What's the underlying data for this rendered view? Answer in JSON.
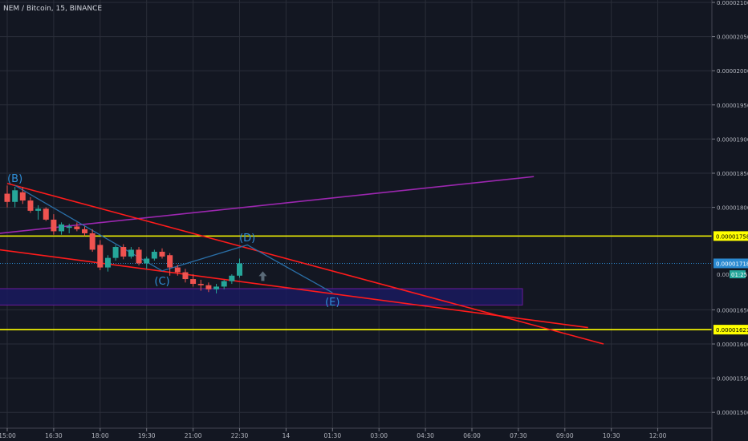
{
  "header": {
    "title": "NEM / Bitcoin, 15, BINANCE"
  },
  "colors": {
    "background": "#131722",
    "grid": "#2a2e39",
    "up": "#26a69a",
    "down": "#ef5350",
    "trend_red": "#ff1b1b",
    "trend_purple": "#9c27b0",
    "level_yellow": "#ffff00",
    "box_fill": "#1a1a5e",
    "box_stroke": "#6a1b9a",
    "wave": "#2a6fa8",
    "price_line": "#2b8ad1"
  },
  "chart_data": {
    "type": "candlestick",
    "title": "NEM / Bitcoin, 15, BINANCE",
    "ylim": [
      1.48e-05,
      2.1e-05
    ],
    "y_ticks": [
      "0.00002100",
      "0.00002050",
      "0.00002000",
      "0.00001950",
      "0.00001900",
      "0.00001850",
      "0.00001800",
      "0.00001650",
      "0.00001600",
      "0.00001550",
      "0.00001500"
    ],
    "x_ticks": [
      "15:00",
      "16:30",
      "18:00",
      "19:30",
      "21:00",
      "22:30",
      "14",
      "01:30",
      "03:00",
      "04:30",
      "06:00",
      "07:30",
      "09:00",
      "10:30",
      "12:00"
    ],
    "x_tick_slots": [
      0,
      6,
      12,
      18,
      24,
      30,
      36,
      42,
      48,
      54,
      60,
      66,
      72,
      78,
      84
    ],
    "slot_origin_time": "14:15",
    "candles": [
      {
        "slot": 0,
        "o": 1.82e-05,
        "h": 1.832e-05,
        "l": 1.8e-05,
        "c": 1.808e-05
      },
      {
        "slot": 1,
        "o": 1.808e-05,
        "h": 1.83e-05,
        "l": 1.8e-05,
        "c": 1.825e-05
      },
      {
        "slot": 2,
        "o": 1.822e-05,
        "h": 1.83e-05,
        "l": 1.805e-05,
        "c": 1.81e-05
      },
      {
        "slot": 3,
        "o": 1.81e-05,
        "h": 1.815e-05,
        "l": 1.792e-05,
        "c": 1.795e-05
      },
      {
        "slot": 4,
        "o": 1.795e-05,
        "h": 1.803e-05,
        "l": 1.782e-05,
        "c": 1.798e-05
      },
      {
        "slot": 5,
        "o": 1.798e-05,
        "h": 1.8e-05,
        "l": 1.78e-05,
        "c": 1.782e-05
      },
      {
        "slot": 6,
        "o": 1.782e-05,
        "h": 1.79e-05,
        "l": 1.76e-05,
        "c": 1.765e-05
      },
      {
        "slot": 7,
        "o": 1.765e-05,
        "h": 1.778e-05,
        "l": 1.76e-05,
        "c": 1.775e-05
      },
      {
        "slot": 8,
        "o": 1.77e-05,
        "h": 1.776e-05,
        "l": 1.762e-05,
        "c": 1.772e-05
      },
      {
        "slot": 9,
        "o": 1.772e-05,
        "h": 1.778e-05,
        "l": 1.765e-05,
        "c": 1.768e-05
      },
      {
        "slot": 10,
        "o": 1.768e-05,
        "h": 1.772e-05,
        "l": 1.758e-05,
        "c": 1.762e-05
      },
      {
        "slot": 11,
        "o": 1.762e-05,
        "h": 1.768e-05,
        "l": 1.735e-05,
        "c": 1.738e-05
      },
      {
        "slot": 12,
        "o": 1.745e-05,
        "h": 1.752e-05,
        "l": 1.708e-05,
        "c": 1.712e-05
      },
      {
        "slot": 13,
        "o": 1.712e-05,
        "h": 1.73e-05,
        "l": 1.706e-05,
        "c": 1.726e-05
      },
      {
        "slot": 14,
        "o": 1.726e-05,
        "h": 1.745e-05,
        "l": 1.722e-05,
        "c": 1.742e-05
      },
      {
        "slot": 15,
        "o": 1.742e-05,
        "h": 1.746e-05,
        "l": 1.724e-05,
        "c": 1.728e-05
      },
      {
        "slot": 16,
        "o": 1.728e-05,
        "h": 1.742e-05,
        "l": 1.725e-05,
        "c": 1.738e-05
      },
      {
        "slot": 17,
        "o": 1.738e-05,
        "h": 1.742e-05,
        "l": 1.715e-05,
        "c": 1.718e-05
      },
      {
        "slot": 18,
        "o": 1.718e-05,
        "h": 1.728e-05,
        "l": 1.71e-05,
        "c": 1.725e-05
      },
      {
        "slot": 19,
        "o": 1.725e-05,
        "h": 1.738e-05,
        "l": 1.722e-05,
        "c": 1.735e-05
      },
      {
        "slot": 20,
        "o": 1.735e-05,
        "h": 1.74e-05,
        "l": 1.725e-05,
        "c": 1.728e-05
      },
      {
        "slot": 21,
        "o": 1.73e-05,
        "h": 1.733e-05,
        "l": 1.7e-05,
        "c": 1.712e-05
      },
      {
        "slot": 22,
        "o": 1.712e-05,
        "h": 1.716e-05,
        "l": 1.7e-05,
        "c": 1.705e-05
      },
      {
        "slot": 23,
        "o": 1.705e-05,
        "h": 1.71e-05,
        "l": 1.69e-05,
        "c": 1.695e-05
      },
      {
        "slot": 24,
        "o": 1.695e-05,
        "h": 1.702e-05,
        "l": 1.684e-05,
        "c": 1.688e-05
      },
      {
        "slot": 25,
        "o": 1.688e-05,
        "h": 1.694e-05,
        "l": 1.678e-05,
        "c": 1.686e-05
      },
      {
        "slot": 26,
        "o": 1.686e-05,
        "h": 1.69e-05,
        "l": 1.676e-05,
        "c": 1.68e-05
      },
      {
        "slot": 27,
        "o": 1.68e-05,
        "h": 1.688e-05,
        "l": 1.674e-05,
        "c": 1.684e-05
      },
      {
        "slot": 28,
        "o": 1.684e-05,
        "h": 1.694e-05,
        "l": 1.68e-05,
        "c": 1.692e-05
      },
      {
        "slot": 29,
        "o": 1.692e-05,
        "h": 1.702e-05,
        "l": 1.688e-05,
        "c": 1.7e-05
      },
      {
        "slot": 30,
        "o": 1.7e-05,
        "h": 1.725e-05,
        "l": 1.697e-05,
        "c": 1.718e-05
      }
    ],
    "price_labels": [
      {
        "text": "0.00001758",
        "value": 1.758e-05,
        "kind": "level"
      },
      {
        "text": "0.00001718",
        "value": 1.718e-05,
        "kind": "current"
      },
      {
        "text": "0.0000",
        "countdown": "01:25",
        "value": 1.702e-05,
        "kind": "countdown"
      },
      {
        "text": "0.00001621",
        "value": 1.621e-05,
        "kind": "level"
      }
    ],
    "horizontal_levels": [
      1.758e-05,
      1.621e-05
    ],
    "current_price": 1.718e-05,
    "zone": {
      "from_slot": -1,
      "to_slot": 100,
      "low": 1.657e-05,
      "high": 1.681e-05
    },
    "trendlines": [
      {
        "color": "purple",
        "from": {
          "slot": -1,
          "value": 1.762e-05
        },
        "to": {
          "slot": 68,
          "value": 1.845e-05
        }
      },
      {
        "color": "red",
        "from": {
          "slot": 0,
          "value": 1.835e-05
        },
        "to": {
          "slot": 77,
          "value": 1.6e-05
        }
      },
      {
        "color": "red",
        "from": {
          "slot": -1,
          "value": 1.738e-05
        },
        "to": {
          "slot": 75,
          "value": 1.624e-05
        }
      }
    ],
    "waves": [
      {
        "label": "(B)",
        "slot": 1,
        "value": 1.832e-05,
        "label_value": 1.843e-05
      },
      {
        "label": "(C)",
        "slot": 20,
        "value": 1.707e-05,
        "label_value": 1.693e-05
      },
      {
        "label": "(D)",
        "slot": 31,
        "value": 1.745e-05,
        "label_value": 1.756e-05
      },
      {
        "label": "(E)",
        "slot": 42,
        "value": 1.675e-05,
        "label_value": 1.662e-05
      }
    ],
    "arrow": {
      "slot": 33,
      "value": 1.697e-05,
      "direction": "up"
    }
  }
}
